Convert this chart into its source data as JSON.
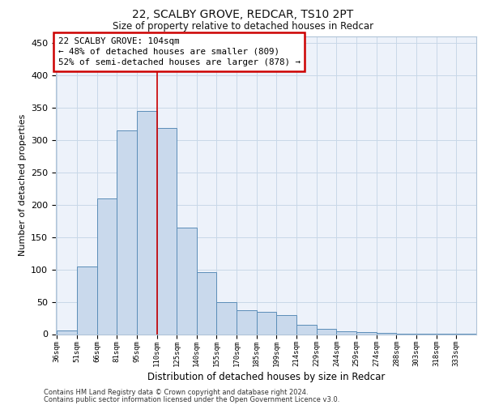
{
  "title1": "22, SCALBY GROVE, REDCAR, TS10 2PT",
  "title2": "Size of property relative to detached houses in Redcar",
  "xlabel": "Distribution of detached houses by size in Redcar",
  "ylabel": "Number of detached properties",
  "categories": [
    "36sqm",
    "51sqm",
    "66sqm",
    "81sqm",
    "95sqm",
    "110sqm",
    "125sqm",
    "140sqm",
    "155sqm",
    "170sqm",
    "185sqm",
    "199sqm",
    "214sqm",
    "229sqm",
    "244sqm",
    "259sqm",
    "274sqm",
    "288sqm",
    "303sqm",
    "318sqm",
    "333sqm"
  ],
  "values": [
    6,
    105,
    210,
    315,
    345,
    318,
    165,
    96,
    50,
    37,
    35,
    29,
    15,
    8,
    5,
    3,
    2,
    1,
    1,
    1,
    1
  ],
  "bar_color": "#c9d9ec",
  "bar_edge_color": "#5b8db8",
  "property_line_x": 5,
  "annotation_text": "22 SCALBY GROVE: 104sqm\n← 48% of detached houses are smaller (809)\n52% of semi-detached houses are larger (878) →",
  "annotation_box_edgecolor": "#cc0000",
  "annotation_fill_color": "#ffffff",
  "grid_color": "#c8d8e8",
  "background_color": "#edf2fa",
  "ylim": [
    0,
    460
  ],
  "yticks": [
    0,
    50,
    100,
    150,
    200,
    250,
    300,
    350,
    400,
    450
  ],
  "footnote1": "Contains HM Land Registry data © Crown copyright and database right 2024.",
  "footnote2": "Contains public sector information licensed under the Open Government Licence v3.0."
}
